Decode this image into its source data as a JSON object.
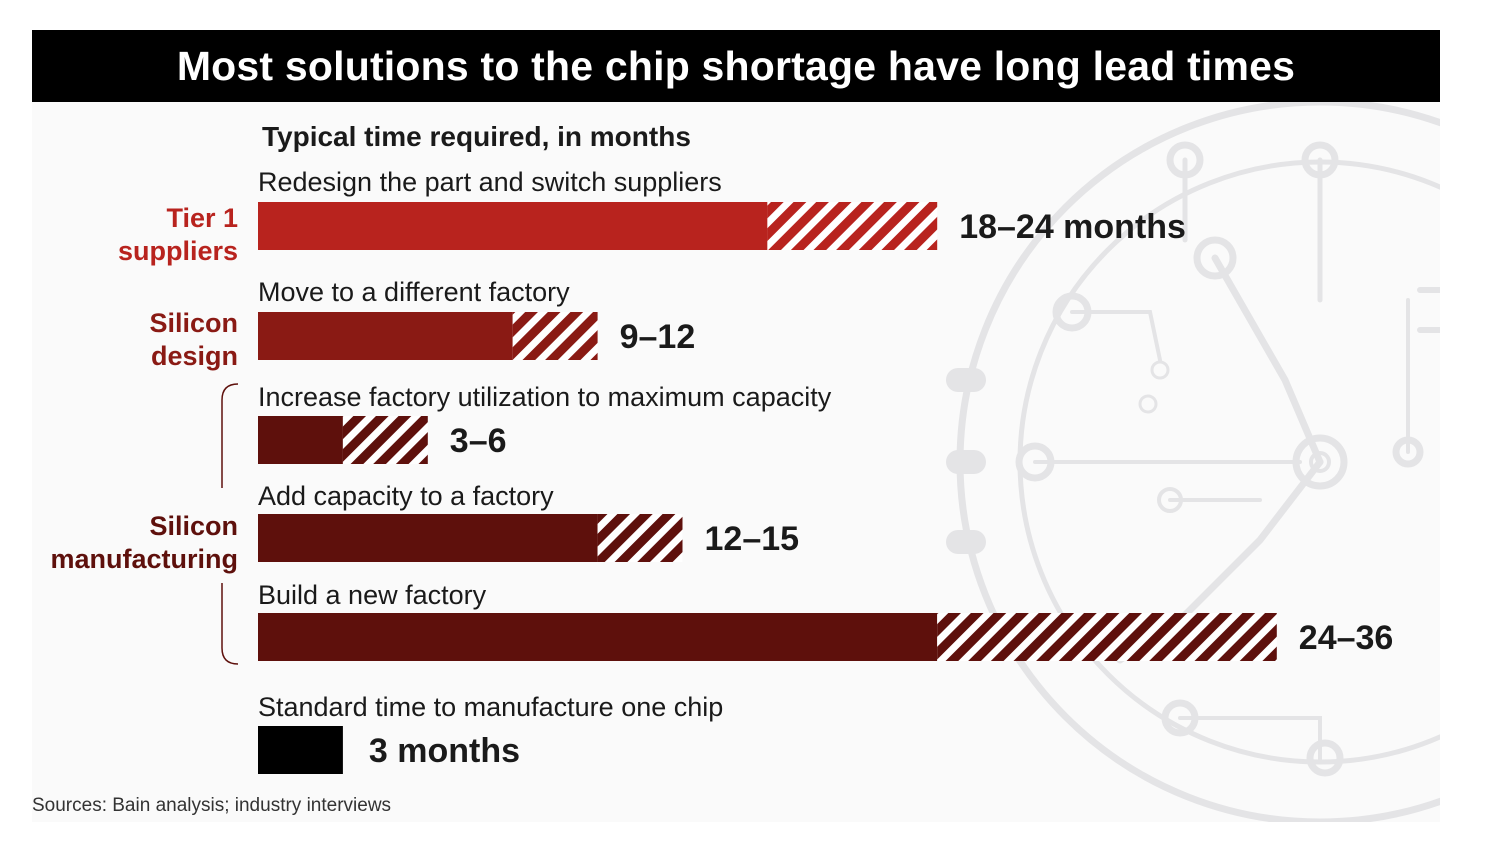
{
  "title": "Most solutions to the chip shortage have long lead times",
  "subtitle": "Typical time required, in months",
  "source": "Sources: Bain analysis; industry interviews",
  "colors": {
    "tier1": "#b8231e",
    "silicon_design": "#8a1a14",
    "silicon_manufacturing": "#5e100c",
    "standard": "#000000"
  },
  "chart_data": {
    "type": "bar",
    "orientation": "horizontal",
    "units": "months",
    "groups": [
      {
        "name": "Tier 1 suppliers",
        "color": "#b8231e"
      },
      {
        "name": "Silicon design",
        "color": "#8a1a14"
      },
      {
        "name": "Silicon manufacturing",
        "color": "#5e100c"
      }
    ],
    "bars": [
      {
        "category": "Redesign the part and switch suppliers",
        "group": "Tier 1 suppliers",
        "min": 18,
        "max": 24,
        "label": "18–24 months",
        "color": "#b8231e"
      },
      {
        "category": "Move to a different factory",
        "group": "Silicon design",
        "min": 9,
        "max": 12,
        "label": "9–12",
        "color": "#8a1a14"
      },
      {
        "category": "Increase factory utilization to maximum capacity",
        "group": "Silicon manufacturing",
        "min": 3,
        "max": 6,
        "label": "3–6",
        "color": "#5e100c"
      },
      {
        "category": "Add capacity to a factory",
        "group": "Silicon manufacturing",
        "min": 12,
        "max": 15,
        "label": "12–15",
        "color": "#5e100c"
      },
      {
        "category": "Build a new factory",
        "group": "Silicon manufacturing",
        "min": 24,
        "max": 36,
        "label": "24–36",
        "color": "#5e100c"
      }
    ],
    "reference": {
      "category": "Standard time to manufacture one chip",
      "value": 3,
      "label": "3 months",
      "color": "#000000"
    },
    "group_labels": [
      {
        "lines": [
          "Tier 1",
          "suppliers"
        ],
        "color": "#b8231e"
      },
      {
        "lines": [
          "Silicon",
          "design"
        ],
        "color": "#8a1a14"
      },
      {
        "lines": [
          "Silicon",
          "manufacturing"
        ],
        "color": "#5e100c"
      }
    ]
  }
}
